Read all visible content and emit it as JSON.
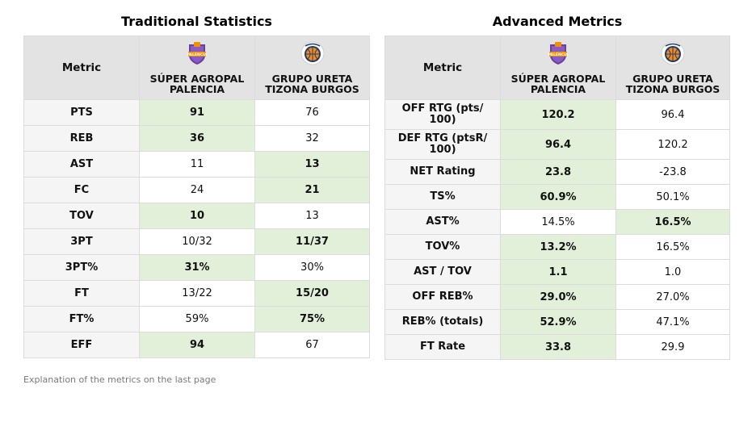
{
  "traditional": {
    "title": "Traditional Statistics",
    "header": {
      "metric": "Metric",
      "team1_line1": "SÚPER AGROPAL",
      "team1_line2": "PALENCIA",
      "team2_line1": "GRUPO URETA",
      "team2_line2": "TIZONA BURGOS"
    },
    "rows": [
      {
        "metric": "PTS",
        "team1": "91",
        "team2": "76",
        "winner": 1
      },
      {
        "metric": "REB",
        "team1": "36",
        "team2": "32",
        "winner": 1
      },
      {
        "metric": "AST",
        "team1": "11",
        "team2": "13",
        "winner": 2
      },
      {
        "metric": "FC",
        "team1": "24",
        "team2": "21",
        "winner": 2
      },
      {
        "metric": "TOV",
        "team1": "10",
        "team2": "13",
        "winner": 1
      },
      {
        "metric": "3PT",
        "team1": "10/32",
        "team2": "11/37",
        "winner": 2
      },
      {
        "metric": "3PT%",
        "team1": "31%",
        "team2": "30%",
        "winner": 1
      },
      {
        "metric": "FT",
        "team1": "13/22",
        "team2": "15/20",
        "winner": 2
      },
      {
        "metric": "FT%",
        "team1": "59%",
        "team2": "75%",
        "winner": 2
      },
      {
        "metric": "EFF",
        "team1": "94",
        "team2": "67",
        "winner": 1
      }
    ]
  },
  "advanced": {
    "title": "Advanced Metrics",
    "header": {
      "metric": "Metric",
      "team1_line1": "SÚPER AGROPAL",
      "team1_line2": "PALENCIA",
      "team2_line1": "GRUPO URETA",
      "team2_line2": "TIZONA BURGOS"
    },
    "rows": [
      {
        "metric_line1": "OFF RTG (pts/",
        "metric_line2": "100)",
        "team1": "120.2",
        "team2": "96.4",
        "winner": 1
      },
      {
        "metric_line1": "DEF RTG (ptsR/",
        "metric_line2": "100)",
        "team1": "96.4",
        "team2": "120.2",
        "winner": 1
      },
      {
        "metric_line1": "NET Rating",
        "metric_line2": "",
        "team1": "23.8",
        "team2": "-23.8",
        "winner": 1
      },
      {
        "metric_line1": "TS%",
        "metric_line2": "",
        "team1": "60.9%",
        "team2": "50.1%",
        "winner": 1
      },
      {
        "metric_line1": "AST%",
        "metric_line2": "",
        "team1": "14.5%",
        "team2": "16.5%",
        "winner": 2
      },
      {
        "metric_line1": "TOV%",
        "metric_line2": "",
        "team1": "13.2%",
        "team2": "16.5%",
        "winner": 1
      },
      {
        "metric_line1": "AST / TOV",
        "metric_line2": "",
        "team1": "1.1",
        "team2": "1.0",
        "winner": 1
      },
      {
        "metric_line1": "OFF REB%",
        "metric_line2": "",
        "team1": "29.0%",
        "team2": "27.0%",
        "winner": 1
      },
      {
        "metric_line1": "REB% (totals)",
        "metric_line2": "",
        "team1": "52.9%",
        "team2": "47.1%",
        "winner": 1
      },
      {
        "metric_line1": "FT Rate",
        "metric_line2": "",
        "team1": "33.8",
        "team2": "29.9",
        "winner": 1
      }
    ]
  },
  "logos": {
    "team1_text": "PALENCIA",
    "team1_colors": {
      "primary": "#6b3fa0",
      "accent": "#f29100"
    },
    "team2_colors": {
      "primary": "#1f3c6e",
      "accent": "#f28a1c"
    }
  },
  "colors": {
    "highlight": "#e3f0d9",
    "header": "#e3e3e3",
    "metric_cell": "#f5f5f5"
  },
  "footnote": "Explanation of the metrics on the last page"
}
